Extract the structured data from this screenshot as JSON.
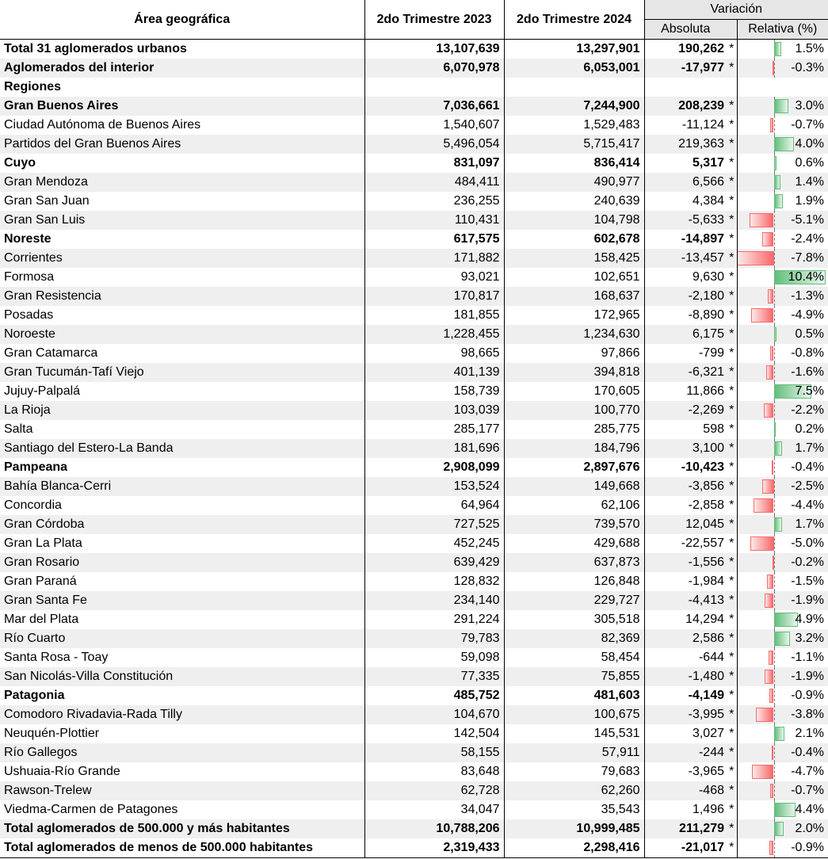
{
  "header": {
    "area": "Área geográfica",
    "q2023": "2do Trimestre 2023",
    "q2024": "2do Trimestre 2024",
    "variacion": "Variación",
    "absoluta": "Absoluta",
    "relativa": "Relativa (%)"
  },
  "rows": [
    {
      "name": "Total 31 aglomerados urbanos",
      "q2023": "13,107,639",
      "q2024": "13,297,901",
      "abs": "190,262",
      "star": "*",
      "rel": "1.5%",
      "relv": 1.5,
      "bold": true,
      "shade": false
    },
    {
      "name": "Aglomerados del interior",
      "q2023": "6,070,978",
      "q2024": "6,053,001",
      "abs": "-17,977",
      "star": "*",
      "rel": "-0.3%",
      "relv": -0.3,
      "bold": true,
      "shade": true
    },
    {
      "name": "Regiones",
      "q2023": "",
      "q2024": "",
      "abs": "",
      "star": "",
      "rel": "",
      "relv": null,
      "bold": true,
      "shade": false
    },
    {
      "name": "Gran Buenos Aires",
      "q2023": "7,036,661",
      "q2024": "7,244,900",
      "abs": "208,239",
      "star": "*",
      "rel": "3.0%",
      "relv": 3.0,
      "bold": true,
      "shade": true
    },
    {
      "name": "Ciudad Autónoma de Buenos Aires",
      "q2023": "1,540,607",
      "q2024": "1,529,483",
      "abs": "-11,124",
      "star": "*",
      "rel": "-0.7%",
      "relv": -0.7,
      "bold": false,
      "shade": false
    },
    {
      "name": "Partidos del Gran Buenos Aires",
      "q2023": "5,496,054",
      "q2024": "5,715,417",
      "abs": "219,363",
      "star": "*",
      "rel": "4.0%",
      "relv": 4.0,
      "bold": false,
      "shade": true
    },
    {
      "name": "Cuyo",
      "q2023": "831,097",
      "q2024": "836,414",
      "abs": "5,317",
      "star": "*",
      "rel": "0.6%",
      "relv": 0.6,
      "bold": true,
      "shade": false
    },
    {
      "name": "Gran Mendoza",
      "q2023": "484,411",
      "q2024": "490,977",
      "abs": "6,566",
      "star": "*",
      "rel": "1.4%",
      "relv": 1.4,
      "bold": false,
      "shade": true
    },
    {
      "name": "Gran San Juan",
      "q2023": "236,255",
      "q2024": "240,639",
      "abs": "4,384",
      "star": "*",
      "rel": "1.9%",
      "relv": 1.9,
      "bold": false,
      "shade": false
    },
    {
      "name": "Gran San Luis",
      "q2023": "110,431",
      "q2024": "104,798",
      "abs": "-5,633",
      "star": "*",
      "rel": "-5.1%",
      "relv": -5.1,
      "bold": false,
      "shade": true
    },
    {
      "name": "Noreste",
      "q2023": "617,575",
      "q2024": "602,678",
      "abs": "-14,897",
      "star": "*",
      "rel": "-2.4%",
      "relv": -2.4,
      "bold": true,
      "shade": false
    },
    {
      "name": "Corrientes",
      "q2023": "171,882",
      "q2024": "158,425",
      "abs": "-13,457",
      "star": "*",
      "rel": "-7.8%",
      "relv": -7.8,
      "bold": false,
      "shade": true
    },
    {
      "name": "Formosa",
      "q2023": "93,021",
      "q2024": "102,651",
      "abs": "9,630",
      "star": "*",
      "rel": "10.4%",
      "relv": 10.4,
      "bold": false,
      "shade": false
    },
    {
      "name": "Gran Resistencia",
      "q2023": "170,817",
      "q2024": "168,637",
      "abs": "-2,180",
      "star": "*",
      "rel": "-1.3%",
      "relv": -1.3,
      "bold": false,
      "shade": true
    },
    {
      "name": "Posadas",
      "q2023": "181,855",
      "q2024": "172,965",
      "abs": "-8,890",
      "star": "*",
      "rel": "-4.9%",
      "relv": -4.9,
      "bold": false,
      "shade": false
    },
    {
      "name": "Noroeste",
      "q2023": "1,228,455",
      "q2024": "1,234,630",
      "abs": "6,175",
      "star": "*",
      "rel": "0.5%",
      "relv": 0.5,
      "bold": false,
      "shade": true
    },
    {
      "name": "Gran Catamarca",
      "q2023": "98,665",
      "q2024": "97,866",
      "abs": "-799",
      "star": "*",
      "rel": "-0.8%",
      "relv": -0.8,
      "bold": false,
      "shade": false
    },
    {
      "name": "Gran Tucumán-Tafí Viejo",
      "q2023": "401,139",
      "q2024": "394,818",
      "abs": "-6,321",
      "star": "*",
      "rel": "-1.6%",
      "relv": -1.6,
      "bold": false,
      "shade": true
    },
    {
      "name": "Jujuy-Palpalá",
      "q2023": "158,739",
      "q2024": "170,605",
      "abs": "11,866",
      "star": "*",
      "rel": "7.5%",
      "relv": 7.5,
      "bold": false,
      "shade": false
    },
    {
      "name": "La Rioja",
      "q2023": "103,039",
      "q2024": "100,770",
      "abs": "-2,269",
      "star": "*",
      "rel": "-2.2%",
      "relv": -2.2,
      "bold": false,
      "shade": true
    },
    {
      "name": "Salta",
      "q2023": "285,177",
      "q2024": "285,775",
      "abs": "598",
      "star": "*",
      "rel": "0.2%",
      "relv": 0.2,
      "bold": false,
      "shade": false
    },
    {
      "name": "Santiago del Estero-La Banda",
      "q2023": "181,696",
      "q2024": "184,796",
      "abs": "3,100",
      "star": "*",
      "rel": "1.7%",
      "relv": 1.7,
      "bold": false,
      "shade": true
    },
    {
      "name": "Pampeana",
      "q2023": "2,908,099",
      "q2024": "2,897,676",
      "abs": "-10,423",
      "star": "*",
      "rel": "-0.4%",
      "relv": -0.4,
      "bold": true,
      "shade": false
    },
    {
      "name": "Bahía Blanca-Cerri",
      "q2023": "153,524",
      "q2024": "149,668",
      "abs": "-3,856",
      "star": "*",
      "rel": "-2.5%",
      "relv": -2.5,
      "bold": false,
      "shade": true
    },
    {
      "name": "Concordia",
      "q2023": "64,964",
      "q2024": "62,106",
      "abs": "-2,858",
      "star": "*",
      "rel": "-4.4%",
      "relv": -4.4,
      "bold": false,
      "shade": false
    },
    {
      "name": "Gran Córdoba",
      "q2023": "727,525",
      "q2024": "739,570",
      "abs": "12,045",
      "star": "*",
      "rel": "1.7%",
      "relv": 1.7,
      "bold": false,
      "shade": true
    },
    {
      "name": "Gran La Plata",
      "q2023": "452,245",
      "q2024": "429,688",
      "abs": "-22,557",
      "star": "*",
      "rel": "-5.0%",
      "relv": -5.0,
      "bold": false,
      "shade": false
    },
    {
      "name": "Gran Rosario",
      "q2023": "639,429",
      "q2024": "637,873",
      "abs": "-1,556",
      "star": "*",
      "rel": "-0.2%",
      "relv": -0.2,
      "bold": false,
      "shade": true
    },
    {
      "name": "Gran Paraná",
      "q2023": "128,832",
      "q2024": "126,848",
      "abs": "-1,984",
      "star": "*",
      "rel": "-1.5%",
      "relv": -1.5,
      "bold": false,
      "shade": false
    },
    {
      "name": "Gran Santa Fe",
      "q2023": "234,140",
      "q2024": "229,727",
      "abs": "-4,413",
      "star": "*",
      "rel": "-1.9%",
      "relv": -1.9,
      "bold": false,
      "shade": true
    },
    {
      "name": "Mar del Plata",
      "q2023": "291,224",
      "q2024": "305,518",
      "abs": "14,294",
      "star": "*",
      "rel": "4.9%",
      "relv": 4.9,
      "bold": false,
      "shade": false
    },
    {
      "name": "Río Cuarto",
      "q2023": "79,783",
      "q2024": "82,369",
      "abs": "2,586",
      "star": "*",
      "rel": "3.2%",
      "relv": 3.2,
      "bold": false,
      "shade": true
    },
    {
      "name": "Santa Rosa - Toay",
      "q2023": "59,098",
      "q2024": "58,454",
      "abs": "-644",
      "star": "*",
      "rel": "-1.1%",
      "relv": -1.1,
      "bold": false,
      "shade": false
    },
    {
      "name": "San Nicolás-Villa Constitución",
      "q2023": "77,335",
      "q2024": "75,855",
      "abs": "-1,480",
      "star": "*",
      "rel": "-1.9%",
      "relv": -1.9,
      "bold": false,
      "shade": true
    },
    {
      "name": "Patagonia",
      "q2023": "485,752",
      "q2024": "481,603",
      "abs": "-4,149",
      "star": "*",
      "rel": "-0.9%",
      "relv": -0.9,
      "bold": true,
      "shade": false
    },
    {
      "name": "Comodoro Rivadavia-Rada Tilly",
      "q2023": "104,670",
      "q2024": "100,675",
      "abs": "-3,995",
      "star": "*",
      "rel": "-3.8%",
      "relv": -3.8,
      "bold": false,
      "shade": true
    },
    {
      "name": "Neuquén-Plottier",
      "q2023": "142,504",
      "q2024": "145,531",
      "abs": "3,027",
      "star": "*",
      "rel": "2.1%",
      "relv": 2.1,
      "bold": false,
      "shade": false
    },
    {
      "name": "Río Gallegos",
      "q2023": "58,155",
      "q2024": "57,911",
      "abs": "-244",
      "star": "*",
      "rel": "-0.4%",
      "relv": -0.4,
      "bold": false,
      "shade": true
    },
    {
      "name": "Ushuaia-Río Grande",
      "q2023": "83,648",
      "q2024": "79,683",
      "abs": "-3,965",
      "star": "*",
      "rel": "-4.7%",
      "relv": -4.7,
      "bold": false,
      "shade": false
    },
    {
      "name": "Rawson-Trelew",
      "q2023": "62,728",
      "q2024": "62,260",
      "abs": "-468",
      "star": "*",
      "rel": "-0.7%",
      "relv": -0.7,
      "bold": false,
      "shade": true
    },
    {
      "name": "Viedma-Carmen de Patagones",
      "q2023": "34,047",
      "q2024": "35,543",
      "abs": "1,496",
      "star": "*",
      "rel": "4.4%",
      "relv": 4.4,
      "bold": false,
      "shade": false
    },
    {
      "name": "Total aglomerados de 500.000 y más habitantes",
      "q2023": "10,788,206",
      "q2024": "10,999,485",
      "abs": "211,279",
      "star": "*",
      "rel": "2.0%",
      "relv": 2.0,
      "bold": true,
      "shade": true
    },
    {
      "name": "Total aglomerados de menos de 500.000 habitantes",
      "q2023": "2,319,433",
      "q2024": "2,298,416",
      "abs": "-21,017",
      "star": "*",
      "rel": "-0.9%",
      "relv": -0.9,
      "bold": true,
      "shade": false
    }
  ],
  "colors": {
    "positive_bar": "#63be7b",
    "negative_bar": "#f8696b",
    "shade": "#efefef",
    "header_gray": "#e6e6e6"
  }
}
